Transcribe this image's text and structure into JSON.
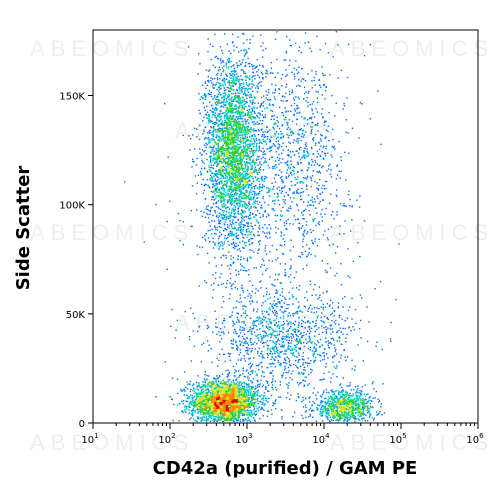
{
  "chart_data": {
    "type": "scatter",
    "subtype": "flow-cytometry-density",
    "title": "",
    "xlabel": "CD42a (purified) / GAM PE",
    "ylabel": "Side Scatter",
    "x_scale": "log",
    "xlim": [
      10,
      1000000
    ],
    "ylim": [
      0,
      180000
    ],
    "x_ticks": [
      {
        "value": 10,
        "base": "10",
        "exp": "1"
      },
      {
        "value": 100,
        "base": "10",
        "exp": "2"
      },
      {
        "value": 1000,
        "base": "10",
        "exp": "3"
      },
      {
        "value": 10000,
        "base": "10",
        "exp": "4"
      },
      {
        "value": 100000,
        "base": "10",
        "exp": "5"
      },
      {
        "value": 1000000,
        "base": "10",
        "exp": "6"
      }
    ],
    "y_ticks": [
      {
        "value": 0,
        "label": "0"
      },
      {
        "value": 50000,
        "label": "50K"
      },
      {
        "value": 100000,
        "label": "100K"
      },
      {
        "value": 150000,
        "label": "150K"
      }
    ],
    "grid": false,
    "legend": "none",
    "colormap": [
      "#0000cc",
      "#0070ff",
      "#00c8c8",
      "#30d030",
      "#d8e020",
      "#ff8c00",
      "#e00000"
    ],
    "populations": [
      {
        "x_center": 500,
        "y_center": 10000,
        "x_spread_log": 0.22,
        "y_spread": 5000,
        "weight": 0.28
      },
      {
        "x_center": 18000,
        "y_center": 7000,
        "x_spread_log": 0.2,
        "y_spread": 4000,
        "weight": 0.1
      },
      {
        "x_center": 650,
        "y_center": 125000,
        "x_spread_log": 0.18,
        "y_spread": 22000,
        "weight": 0.34
      },
      {
        "x_center": 4000,
        "y_center": 125000,
        "x_spread_log": 0.35,
        "y_spread": 25000,
        "weight": 0.1
      },
      {
        "x_center": 3000,
        "y_center": 38000,
        "x_spread_log": 0.45,
        "y_spread": 11000,
        "weight": 0.1
      },
      {
        "x_center": 2000,
        "y_center": 60000,
        "x_spread_log": 0.6,
        "y_spread": 50000,
        "weight": 0.08
      }
    ],
    "watermark": "ABEOMICS"
  }
}
